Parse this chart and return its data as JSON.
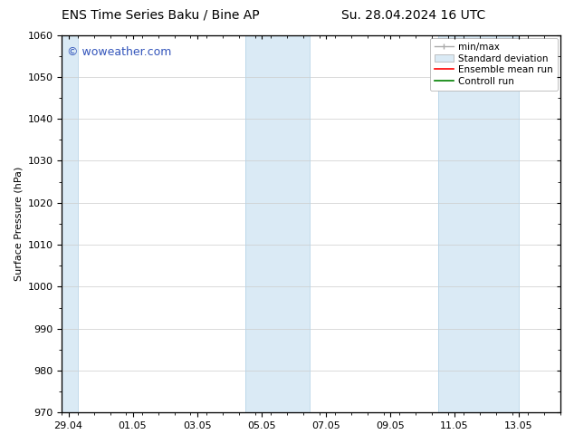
{
  "title_left": "ENS Time Series Baku / Bine AP",
  "title_right": "Su. 28.04.2024 16 UTC",
  "ylabel": "Surface Pressure (hPa)",
  "ylim": [
    970,
    1060
  ],
  "yticks": [
    970,
    980,
    990,
    1000,
    1010,
    1020,
    1030,
    1040,
    1050,
    1060
  ],
  "x_tick_labels": [
    "29.04",
    "01.05",
    "03.05",
    "05.05",
    "07.05",
    "09.05",
    "11.05",
    "13.05"
  ],
  "x_tick_positions": [
    0,
    2,
    4,
    6,
    8,
    10,
    12,
    14
  ],
  "x_minor_tick_spacing": 0.5,
  "xlim": [
    -0.2,
    15.2
  ],
  "shaded_regions": [
    {
      "x_start": -0.2,
      "x_end": 0.3
    },
    {
      "x_start": 5.5,
      "x_end": 7.5
    },
    {
      "x_start": 11.5,
      "x_end": 14.0
    }
  ],
  "shaded_color": "#daeaf5",
  "shaded_edge_color": "#b8d4e8",
  "bg_color": "#ffffff",
  "plot_bg_color": "#ffffff",
  "watermark_text": "© woweather.com",
  "watermark_color": "#3355bb",
  "watermark_fontsize": 9,
  "legend_labels": [
    "min/max",
    "Standard deviation",
    "Ensemble mean run",
    "Controll run"
  ],
  "legend_colors_line": [
    "#999999",
    "#c8dcec",
    "red",
    "green"
  ],
  "title_fontsize": 10,
  "axis_label_fontsize": 8,
  "tick_fontsize": 8,
  "legend_fontsize": 7.5
}
